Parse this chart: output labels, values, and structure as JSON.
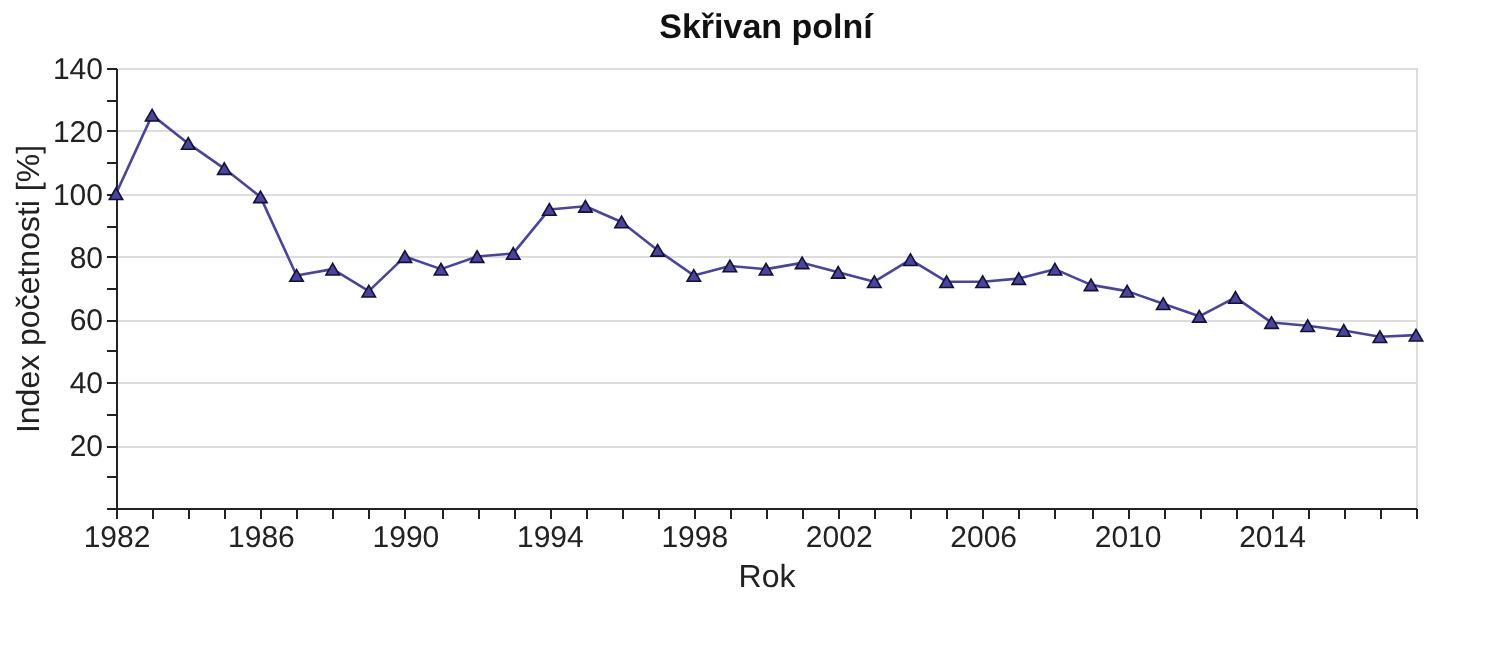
{
  "chart_data": {
    "type": "line",
    "title": "Skřivan polní",
    "xlabel": "Rok",
    "ylabel": "Index početnosti [%]",
    "x": [
      1982,
      1983,
      1984,
      1985,
      1986,
      1987,
      1988,
      1989,
      1990,
      1991,
      1992,
      1993,
      1994,
      1995,
      1996,
      1997,
      1998,
      1999,
      2000,
      2001,
      2002,
      2003,
      2004,
      2005,
      2006,
      2007,
      2008,
      2009,
      2010,
      2011,
      2012,
      2013,
      2014,
      2015,
      2016,
      2017,
      2018
    ],
    "series": [
      {
        "color": "#4a44a0",
        "values": [
          100,
          125,
          116,
          108,
          99,
          74,
          76,
          69,
          80,
          76,
          80,
          81,
          95,
          96,
          91,
          82,
          74,
          77,
          76,
          78,
          75,
          72,
          79,
          72,
          72,
          73,
          76,
          71,
          69,
          65,
          61,
          67,
          59,
          58,
          56.5,
          54.5,
          55
        ]
      }
    ],
    "xlim": [
      1982,
      2018
    ],
    "xticks": [
      1982,
      {
        "value": 1983,
        "label": null
      },
      {
        "value": 1984,
        "label": null
      },
      {
        "value": 1985,
        "label": null
      },
      1986,
      {
        "value": 1987,
        "label": null
      },
      {
        "value": 1988,
        "label": null
      },
      {
        "value": 1989,
        "label": null
      },
      1990,
      {
        "value": 1991,
        "label": null
      },
      {
        "value": 1992,
        "label": null
      },
      {
        "value": 1993,
        "label": null
      },
      1994,
      {
        "value": 1995,
        "label": null
      },
      {
        "value": 1996,
        "label": null
      },
      {
        "value": 1997,
        "label": null
      },
      1998,
      {
        "value": 1999,
        "label": null
      },
      {
        "value": 2000,
        "label": null
      },
      {
        "value": 2001,
        "label": null
      },
      2002,
      {
        "value": 2003,
        "label": null
      },
      {
        "value": 2004,
        "label": null
      },
      {
        "value": 2005,
        "label": null
      },
      2006,
      {
        "value": 2007,
        "label": null
      },
      {
        "value": 2008,
        "label": null
      },
      {
        "value": 2009,
        "label": null
      },
      2010,
      {
        "value": 2011,
        "label": null
      },
      {
        "value": 2012,
        "label": null
      },
      {
        "value": 2013,
        "label": null
      },
      2014,
      {
        "value": 2015,
        "label": null
      },
      {
        "value": 2016,
        "label": null
      },
      {
        "value": 2017,
        "label": null
      },
      {
        "value": 2018,
        "label": null
      }
    ],
    "ylim": [
      0,
      140
    ],
    "yticks": [
      {
        "value": 0,
        "label": null
      },
      {
        "value": 10,
        "label": null
      },
      20,
      {
        "value": 30,
        "label": null
      },
      40,
      {
        "value": 50,
        "label": null
      },
      60,
      {
        "value": 70,
        "label": null
      },
      80,
      {
        "value": 90,
        "label": null
      },
      100,
      {
        "value": 110,
        "label": null
      },
      120,
      {
        "value": 130,
        "label": null
      },
      140
    ],
    "grid": "y",
    "marker": "triangle",
    "line_style": "solid"
  }
}
